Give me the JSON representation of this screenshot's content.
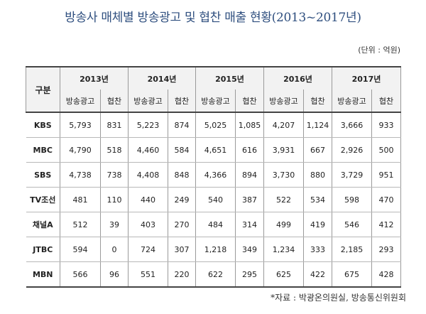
{
  "title": "방송사 매체별 방송광고 및 협찬 매출 현황(2013~2017년)",
  "unit_note": "(단위 : 억원)",
  "source": "*자료 : 박광온의원실, 방송통신위원회",
  "table": {
    "corner": "구분",
    "years": [
      "2013년",
      "2014년",
      "2015년",
      "2016년",
      "2017년"
    ],
    "sub_headers": [
      "방송광고",
      "협찬"
    ],
    "rows": [
      {
        "label": "KBS",
        "values": [
          "5,793",
          "831",
          "5,223",
          "874",
          "5,025",
          "1,085",
          "4,207",
          "1,124",
          "3,666",
          "933"
        ]
      },
      {
        "label": "MBC",
        "values": [
          "4,790",
          "518",
          "4,460",
          "584",
          "4,651",
          "616",
          "3,931",
          "667",
          "2,926",
          "500"
        ]
      },
      {
        "label": "SBS",
        "values": [
          "4,738",
          "738",
          "4,408",
          "848",
          "4,366",
          "894",
          "3,730",
          "880",
          "3,729",
          "951"
        ]
      },
      {
        "label": "TV조선",
        "values": [
          "481",
          "110",
          "440",
          "249",
          "540",
          "387",
          "522",
          "534",
          "598",
          "470"
        ]
      },
      {
        "label": "채널A",
        "values": [
          "512",
          "39",
          "403",
          "270",
          "484",
          "314",
          "499",
          "419",
          "546",
          "412"
        ]
      },
      {
        "label": "JTBC",
        "values": [
          "594",
          "0",
          "724",
          "307",
          "1,218",
          "349",
          "1,234",
          "333",
          "2,185",
          "293"
        ]
      },
      {
        "label": "MBN",
        "values": [
          "566",
          "96",
          "551",
          "220",
          "622",
          "295",
          "625",
          "422",
          "675",
          "428"
        ]
      }
    ]
  }
}
